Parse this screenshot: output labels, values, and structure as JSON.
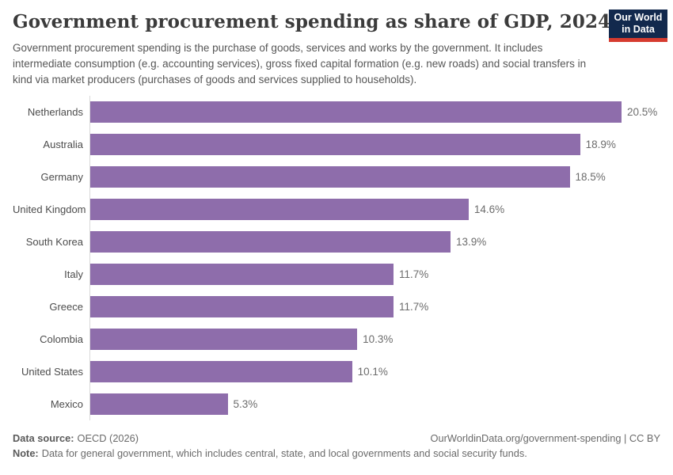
{
  "header": {
    "title": "Government procurement spending as share of GDP, 2024",
    "subtitle": "Government procurement spending is the purchase of goods, services and works by the government. It includes intermediate consumption (e.g. accounting services), gross fixed capital formation (e.g. new roads) and social transfers in kind via market producers (purchases of goods and services supplied to households).",
    "logo": {
      "line1": "Our World",
      "line2": "in Data",
      "bg_color": "#12294d",
      "accent_color": "#d63b2f"
    }
  },
  "chart_data": {
    "type": "bar",
    "orientation": "horizontal",
    "title": "Government procurement spending as share of GDP, 2024",
    "xlabel": "",
    "ylabel": "",
    "xlim": [
      0,
      20.5
    ],
    "grid": false,
    "legend": false,
    "bar_color": "#8e6dab",
    "categories": [
      "Netherlands",
      "Australia",
      "Germany",
      "United Kingdom",
      "South Korea",
      "Italy",
      "Greece",
      "Colombia",
      "United States",
      "Mexico"
    ],
    "values": [
      20.5,
      18.9,
      18.5,
      14.6,
      13.9,
      11.7,
      11.7,
      10.3,
      10.1,
      5.3
    ],
    "value_labels": [
      "20.5%",
      "18.9%",
      "18.5%",
      "14.6%",
      "13.9%",
      "11.7%",
      "11.7%",
      "10.3%",
      "10.1%",
      "5.3%"
    ]
  },
  "footer": {
    "source_label": "Data source:",
    "source_value": "OECD (2026)",
    "citation": "OurWorldinData.org/government-spending | CC BY",
    "note_label": "Note:",
    "note_value": "Data for general government, which includes central, state, and local governments and social security funds."
  }
}
